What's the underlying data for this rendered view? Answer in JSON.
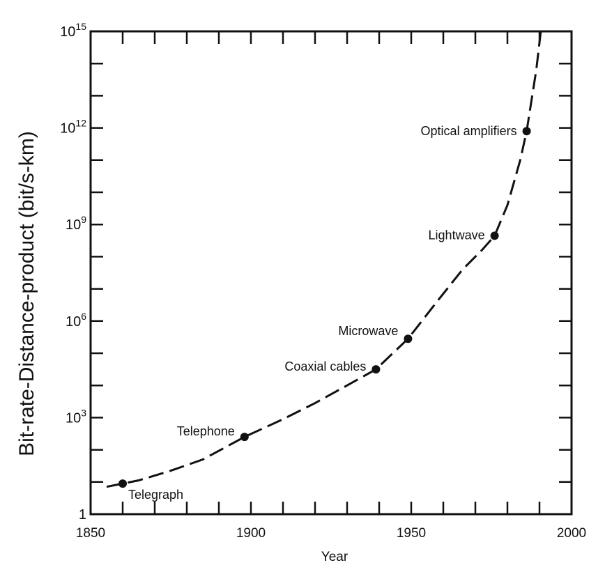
{
  "chart_data": {
    "type": "scatter",
    "title": "",
    "xlabel": "Year",
    "ylabel": "Bit-rate-Distance-product (bit/s-km)",
    "xlim": [
      1850,
      2000
    ],
    "ylim": [
      0,
      15
    ],
    "y_scale": "log10",
    "x_ticks": [
      "1850",
      "1900",
      "1950",
      "2000"
    ],
    "y_ticks": [
      {
        "base": "1",
        "exp": ""
      },
      {
        "base": "10",
        "exp": "3"
      },
      {
        "base": "10",
        "exp": "6"
      },
      {
        "base": "10",
        "exp": "9"
      },
      {
        "base": "10",
        "exp": "12"
      },
      {
        "base": "10",
        "exp": "15"
      }
    ],
    "points": [
      {
        "label": "Telegraph",
        "x": 1860,
        "y": 0.95
      },
      {
        "label": "Telephone",
        "x": 1898,
        "y": 2.4
      },
      {
        "label": "Coaxial cables",
        "x": 1939,
        "y": 4.5
      },
      {
        "label": "Microwave",
        "x": 1949,
        "y": 5.45
      },
      {
        "label": "Lightwave",
        "x": 1976,
        "y": 8.65
      },
      {
        "label": "Optical amplifiers",
        "x": 1986,
        "y": 11.9
      }
    ],
    "trend": {
      "style": "dashed",
      "x": [
        1855,
        1865,
        1875,
        1885,
        1898,
        1910,
        1920,
        1930,
        1939,
        1949,
        1958,
        1966,
        1972,
        1976,
        1980,
        1984,
        1986,
        1989,
        1991
      ],
      "y": [
        0.85,
        1.05,
        1.35,
        1.7,
        2.4,
        2.95,
        3.45,
        4.0,
        4.5,
        5.45,
        6.6,
        7.6,
        8.2,
        8.65,
        9.6,
        11.0,
        11.9,
        13.8,
        15.5
      ]
    },
    "grid": false,
    "legend": "none"
  }
}
